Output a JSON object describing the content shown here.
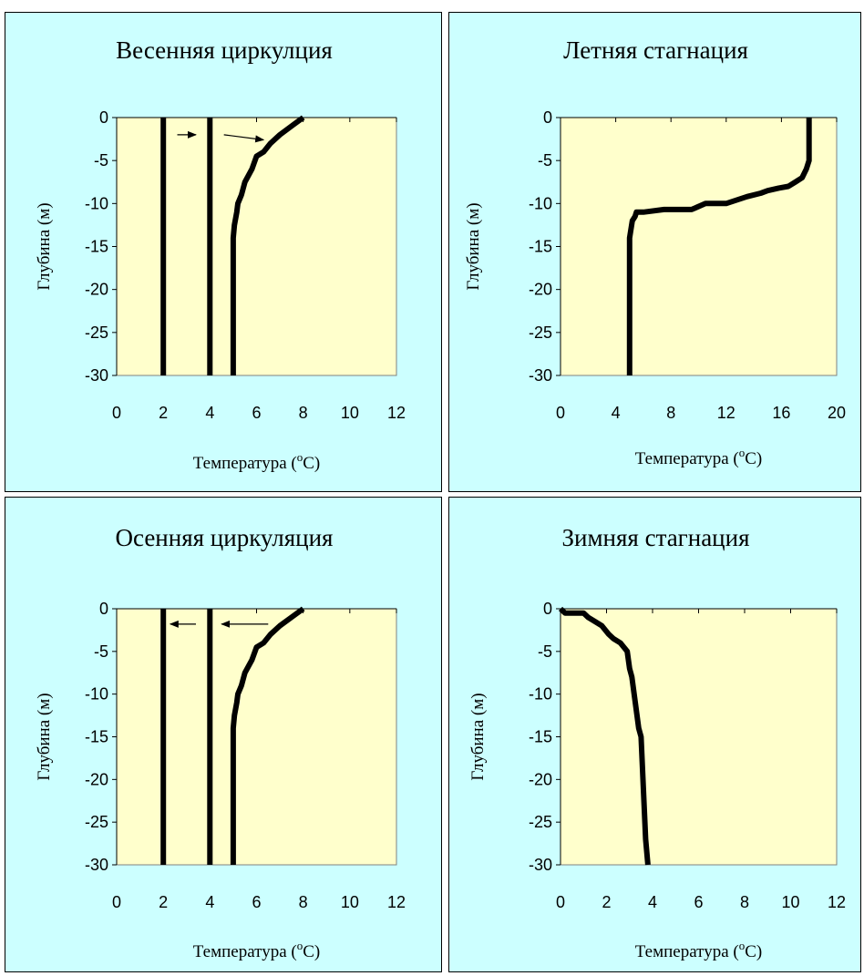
{
  "chart_data": [
    {
      "type": "line",
      "title": "Весенняя циркулция",
      "xlabel": "Температура (",
      "xlabel_sup": "o",
      "xlabel_end": "C)",
      "ylabel": "Глубина (м)",
      "xlim": [
        0,
        12
      ],
      "ylim": [
        -30,
        0
      ],
      "x_ticks": [
        "0",
        "2",
        "4",
        "6",
        "8",
        "10",
        "12"
      ],
      "y_ticks": [
        "0",
        "-5",
        "-10",
        "-15",
        "-20",
        "-25",
        "-30"
      ],
      "grid": false,
      "legend": "none",
      "plot_bg": "#ffffcc",
      "line_color": "#000000",
      "series": [
        {
          "x": [
            2,
            2
          ],
          "y": [
            0,
            -30
          ]
        },
        {
          "x": [
            4,
            4
          ],
          "y": [
            0,
            -30
          ]
        },
        {
          "x": [
            8,
            7.6,
            7.0,
            6.6,
            6.3,
            6.0,
            5.8,
            5.5,
            5.35,
            5.2,
            5.15,
            5.05,
            5.0,
            5.0
          ],
          "y": [
            0,
            -0.8,
            -2,
            -3,
            -4,
            -4.5,
            -6,
            -7.5,
            -9,
            -10,
            -11,
            -12.5,
            -14,
            -30
          ]
        }
      ],
      "arrows": [
        {
          "x1": 2.6,
          "y1": -2.0,
          "x2": 3.4,
          "y2": -2.0
        },
        {
          "x1": 4.6,
          "y1": -2.0,
          "x2": 6.3,
          "y2": -2.6
        }
      ]
    },
    {
      "type": "line",
      "title": "Летняя стагнация",
      "xlabel": "Температура (",
      "xlabel_sup": "o",
      "xlabel_end": "C)",
      "ylabel": "Глубина (м)",
      "xlim": [
        0,
        20
      ],
      "ylim": [
        -30,
        0
      ],
      "x_ticks": [
        "0",
        "4",
        "8",
        "12",
        "16",
        "20"
      ],
      "y_ticks": [
        "0",
        "-5",
        "-10",
        "-15",
        "-20",
        "-25",
        "-30"
      ],
      "grid": false,
      "legend": "none",
      "plot_bg": "#ffffcc",
      "line_color": "#000000",
      "series": [
        {
          "x": [
            18,
            18,
            17.8,
            17.5,
            17.0,
            16.5,
            15.8,
            15.0,
            14.5,
            13.5,
            12.0,
            10.5,
            9.5,
            8.5,
            7.5,
            6.0,
            5.5,
            5.4,
            5.2,
            5.1,
            5.0,
            5.0
          ],
          "y": [
            0,
            -5,
            -6,
            -7,
            -7.5,
            -8,
            -8.2,
            -8.5,
            -8.8,
            -9.2,
            -10,
            -10,
            -10.7,
            -10.7,
            -10.7,
            -11,
            -11,
            -11.5,
            -12,
            -13,
            -14,
            -30
          ]
        }
      ],
      "arrows": []
    },
    {
      "type": "line",
      "title": "Осенняя циркуляция",
      "xlabel": "Температура (",
      "xlabel_sup": "o",
      "xlabel_end": "C)",
      "ylabel": "Глубина (м)",
      "xlim": [
        0,
        12
      ],
      "ylim": [
        -30,
        0
      ],
      "x_ticks": [
        "0",
        "2",
        "4",
        "6",
        "8",
        "10",
        "12"
      ],
      "y_ticks": [
        "0",
        "-5",
        "-10",
        "-15",
        "-20",
        "-25",
        "-30"
      ],
      "grid": false,
      "legend": "none",
      "plot_bg": "#ffffcc",
      "line_color": "#000000",
      "series": [
        {
          "x": [
            2,
            2
          ],
          "y": [
            0,
            -30
          ]
        },
        {
          "x": [
            4,
            4
          ],
          "y": [
            0,
            -30
          ]
        },
        {
          "x": [
            8,
            7.6,
            7.0,
            6.6,
            6.3,
            6.0,
            5.8,
            5.5,
            5.35,
            5.2,
            5.15,
            5.05,
            5.0,
            5.0
          ],
          "y": [
            0,
            -0.8,
            -2,
            -3,
            -4,
            -4.5,
            -6,
            -7.5,
            -9,
            -10,
            -11,
            -12.5,
            -14,
            -30
          ]
        }
      ],
      "arrows": [
        {
          "x1": 3.4,
          "y1": -1.8,
          "x2": 2.3,
          "y2": -1.8
        },
        {
          "x1": 6.5,
          "y1": -1.8,
          "x2": 4.5,
          "y2": -1.8
        }
      ]
    },
    {
      "type": "line",
      "title": "Зимняя стагнация",
      "xlabel": "Температура (",
      "xlabel_sup": "o",
      "xlabel_end": "C)",
      "ylabel": "Глубина (м)",
      "xlim": [
        0,
        12
      ],
      "ylim": [
        -30,
        0
      ],
      "x_ticks": [
        "0",
        "2",
        "4",
        "6",
        "8",
        "10",
        "12"
      ],
      "y_ticks": [
        "0",
        "-5",
        "-10",
        "-15",
        "-20",
        "-25",
        "-30"
      ],
      "grid": false,
      "legend": "none",
      "plot_bg": "#ffffcc",
      "line_color": "#000000",
      "series": [
        {
          "x": [
            0,
            0.2,
            0.5,
            1.0,
            1.2,
            1.5,
            1.8,
            2.1,
            2.3,
            2.6,
            2.9,
            3.0,
            3.1,
            3.2,
            3.3,
            3.4,
            3.5,
            3.6,
            3.7,
            3.8
          ],
          "y": [
            0,
            -0.5,
            -0.5,
            -0.5,
            -1,
            -1.5,
            -2,
            -3,
            -3.5,
            -4,
            -5,
            -7,
            -8,
            -10,
            -12,
            -14,
            -15,
            -21,
            -27,
            -30
          ]
        }
      ],
      "arrows": []
    }
  ]
}
